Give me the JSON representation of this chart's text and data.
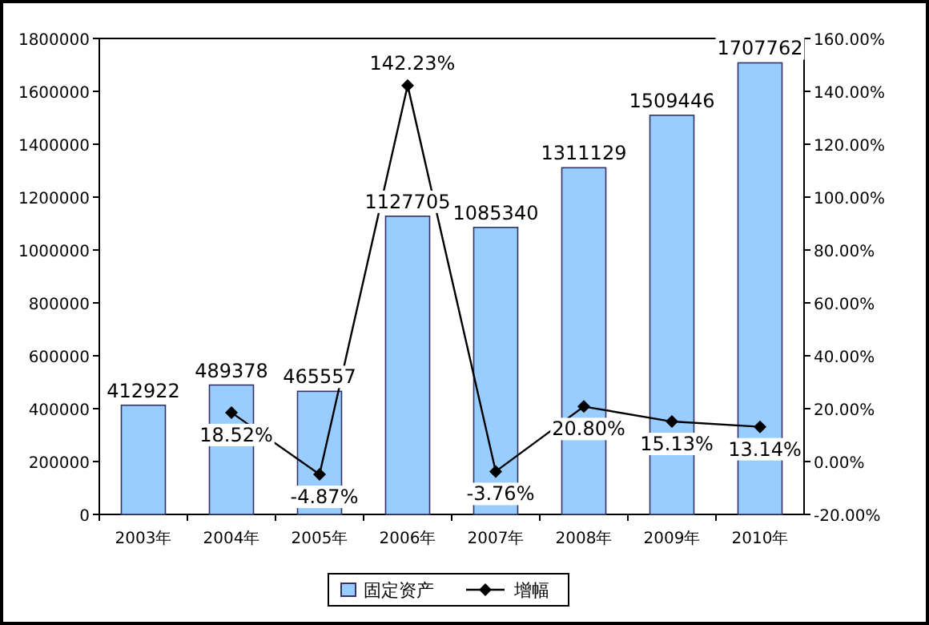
{
  "chart_data": {
    "type": "bar",
    "categories": [
      "2003年",
      "2004年",
      "2005年",
      "2006年",
      "2007年",
      "2008年",
      "2009年",
      "2010年"
    ],
    "series": [
      {
        "name": "固定资产",
        "color": "#99ccff",
        "values": [
          412922,
          489378,
          465557,
          1127705,
          1085340,
          1311129,
          1509446,
          1707762
        ],
        "value_labels": [
          "412922",
          "489378",
          "465557",
          "1127705",
          "1085340",
          "1311129",
          "1509446",
          "1707762"
        ]
      },
      {
        "name": "增幅",
        "type": "line",
        "axis": "y2",
        "color": "#000000",
        "marker": "diamond",
        "values": [
          null,
          18.52,
          -4.87,
          142.23,
          -3.76,
          20.8,
          15.13,
          13.14
        ],
        "value_labels": [
          null,
          "18.52%",
          "-4.87%",
          "142.23%",
          "-3.76%",
          "20.80%",
          "15.13%",
          "13.14%"
        ]
      }
    ],
    "ylim": [
      0,
      1800000
    ],
    "yticks": [
      0,
      200000,
      400000,
      600000,
      800000,
      1000000,
      1200000,
      1400000,
      1600000,
      1800000
    ],
    "y2lim": [
      -20,
      160
    ],
    "y2ticks": [
      {
        "value": -20,
        "label": "-20.00%"
      },
      {
        "value": 0,
        "label": "0.00%"
      },
      {
        "value": 20,
        "label": "20.00%"
      },
      {
        "value": 40,
        "label": "40.00%"
      },
      {
        "value": 60,
        "label": "60.00%"
      },
      {
        "value": 80,
        "label": "80.00%"
      },
      {
        "value": 100,
        "label": "100.00%"
      },
      {
        "value": 120,
        "label": "120.00%"
      },
      {
        "value": 140,
        "label": "140.00%"
      },
      {
        "value": 160,
        "label": "160.00%"
      }
    ],
    "legend": "bottom"
  }
}
